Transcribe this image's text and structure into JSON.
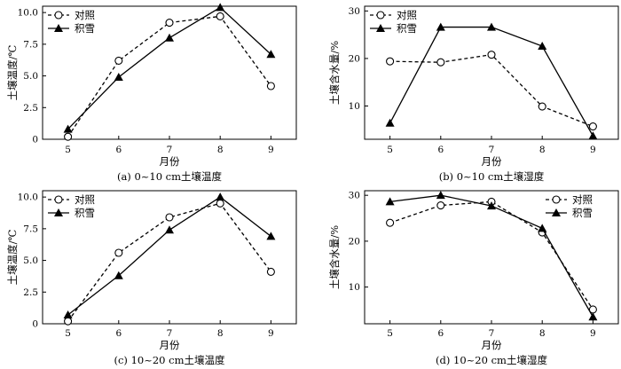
{
  "chart_data": [
    {
      "type": "line",
      "caption": "(a) 0~10 cm土壤温度",
      "xlabel": "月份",
      "ylabel": "土壤温度/℃",
      "x": [
        5,
        6,
        7,
        8,
        9
      ],
      "xlim": [
        4.5,
        9.5
      ],
      "ylim": [
        0,
        10.5
      ],
      "yticks": [
        "0",
        "2.5",
        "5.0",
        "7.5",
        "10.0"
      ],
      "legend_position": "top-left",
      "series": [
        {
          "name": "对照",
          "marker": "open-circle",
          "line": "dashed",
          "values": [
            0.2,
            6.2,
            9.2,
            9.7,
            4.2
          ]
        },
        {
          "name": "积雪",
          "marker": "filled-triangle",
          "line": "solid",
          "values": [
            0.8,
            4.9,
            8.0,
            10.4,
            6.7
          ]
        }
      ]
    },
    {
      "type": "line",
      "caption": "(b) 0~10 cm土壤湿度",
      "xlabel": "月份",
      "ylabel": "土壤含水量/%",
      "x": [
        5,
        6,
        7,
        8,
        9
      ],
      "xlim": [
        4.5,
        9.5
      ],
      "ylim": [
        3,
        31
      ],
      "yticks": [
        "10",
        "20",
        "30"
      ],
      "legend_position": "top-left",
      "series": [
        {
          "name": "对照",
          "marker": "open-circle",
          "line": "dashed",
          "values": [
            19.4,
            19.2,
            20.8,
            9.9,
            5.7
          ]
        },
        {
          "name": "积雪",
          "marker": "filled-triangle",
          "line": "solid",
          "values": [
            6.4,
            26.6,
            26.6,
            22.6,
            3.7
          ]
        }
      ]
    },
    {
      "type": "line",
      "caption": "(c) 10~20 cm土壤温度",
      "xlabel": "月份",
      "ylabel": "土壤温度/℃",
      "x": [
        5,
        6,
        7,
        8,
        9
      ],
      "xlim": [
        4.5,
        9.5
      ],
      "ylim": [
        0,
        10.5
      ],
      "yticks": [
        "0",
        "2.5",
        "5.0",
        "7.5",
        "10.0"
      ],
      "legend_position": "top-left",
      "series": [
        {
          "name": "对照",
          "marker": "open-circle",
          "line": "dashed",
          "values": [
            0.2,
            5.6,
            8.4,
            9.5,
            4.1
          ]
        },
        {
          "name": "积雪",
          "marker": "filled-triangle",
          "line": "solid",
          "values": [
            0.7,
            3.8,
            7.4,
            10.0,
            6.9
          ]
        }
      ]
    },
    {
      "type": "line",
      "caption": "(d) 10~20 cm土壤湿度",
      "xlabel": "月份",
      "ylabel": "土壤含水量/%",
      "x": [
        5,
        6,
        7,
        8,
        9
      ],
      "xlim": [
        4.5,
        9.5
      ],
      "ylim": [
        2,
        31
      ],
      "yticks": [
        "10",
        "20",
        "30"
      ],
      "legend_position": "top-right",
      "series": [
        {
          "name": "对照",
          "marker": "open-circle",
          "line": "dashed",
          "values": [
            24.0,
            27.8,
            28.6,
            21.9,
            5.1
          ]
        },
        {
          "name": "积雪",
          "marker": "filled-triangle",
          "line": "solid",
          "values": [
            28.6,
            30.0,
            27.7,
            22.8,
            3.5
          ]
        }
      ]
    }
  ]
}
